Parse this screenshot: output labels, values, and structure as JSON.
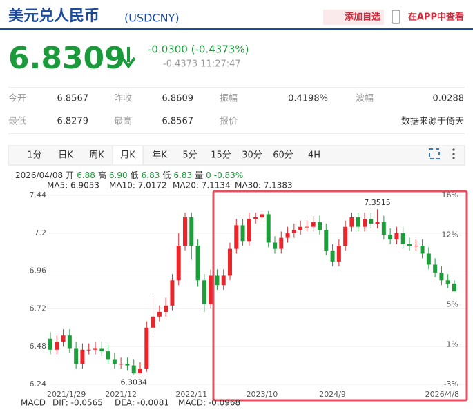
{
  "header": {
    "title": "美元兑人民币",
    "code": "(USDCNY)",
    "add_button": "添加自选",
    "app_button": "在APP中查看"
  },
  "quote": {
    "price": "6.8309",
    "change": "-0.0300 (-0.4373%)",
    "detail": "-0.4373 11:27:47"
  },
  "stats": [
    [
      {
        "label": "今开",
        "value": "6.8567"
      },
      {
        "label": "昨收",
        "value": "6.8609"
      },
      {
        "label": "振幅",
        "value": "0.4198%"
      },
      {
        "label": "波幅",
        "value": "0.0288"
      }
    ],
    [
      {
        "label": "最低",
        "value": "6.8279"
      },
      {
        "label": "最高",
        "value": "6.8567"
      },
      {
        "label": "报价",
        "value": "数据来源于倚天"
      }
    ]
  ],
  "tabs": [
    "1分",
    "日K",
    "周K",
    "月K",
    "年K",
    "5分",
    "15分",
    "30分",
    "60分",
    "4H"
  ],
  "active_tab": 3,
  "info": {
    "date": "2026/04/08",
    "items": [
      {
        "label": "开",
        "value": "6.88"
      },
      {
        "label": "高",
        "value": "6.90"
      },
      {
        "label": "低",
        "value": "6.83"
      },
      {
        "label": "低",
        "value": "6.83"
      },
      {
        "label": "量",
        "value": "0"
      }
    ],
    "change": "-0.83%"
  },
  "ma_legend": [
    {
      "text": "MA5: 6.9053",
      "color": "#f08cb0"
    },
    {
      "text": "MA10: 7.0172",
      "color": "#27b3d6"
    },
    {
      "text": "MA20: 7.1134",
      "color": "#e83a6a"
    },
    {
      "text": "MA30: 7.1383",
      "color": "#9ab52a"
    }
  ],
  "macd": [
    {
      "text": "MACD",
      "color": "#666666"
    },
    {
      "text": "DIF: -0.0565",
      "color": "#3d7fd6"
    },
    {
      "text": "DEA: -0.0081",
      "color": "#e070b0"
    },
    {
      "text": "MACD: -0.0968",
      "color": "#e03a3a"
    }
  ],
  "chart_data": {
    "type": "candlestick",
    "categories": [
      "2021/1/29",
      null,
      null,
      null,
      null,
      null,
      null,
      null,
      null,
      null,
      null,
      "2021/12",
      null,
      null,
      null,
      null,
      null,
      null,
      null,
      null,
      null,
      null,
      "2022/11",
      null,
      null,
      null,
      null,
      null,
      null,
      null,
      null,
      null,
      null,
      "2023/10",
      null,
      null,
      null,
      null,
      null,
      null,
      null,
      null,
      null,
      null,
      "2024/9",
      null,
      null,
      null,
      null,
      null,
      null,
      null,
      null,
      null,
      null,
      null,
      null,
      null,
      null,
      null,
      null,
      null,
      null,
      "2026/4/8"
    ],
    "open": [
      6.53,
      6.46,
      6.51,
      6.55,
      6.47,
      6.37,
      6.46,
      6.46,
      6.47,
      6.45,
      6.4,
      6.37,
      6.37,
      6.36,
      6.31,
      6.34,
      6.6,
      6.67,
      6.7,
      6.74,
      6.9,
      7.12,
      7.3,
      7.12,
      6.9,
      6.75,
      6.93,
      6.87,
      6.93,
      7.1,
      7.25,
      7.15,
      7.29,
      7.3,
      7.32,
      7.14,
      7.1,
      7.17,
      7.2,
      7.22,
      7.24,
      7.24,
      7.27,
      7.22,
      7.09,
      7.02,
      7.12,
      7.24,
      7.3,
      7.24,
      7.29,
      7.26,
      7.27,
      7.19,
      7.16,
      7.2,
      7.13,
      7.12,
      7.12,
      7.07,
      7.0,
      6.95,
      6.9,
      6.88
    ],
    "high": [
      6.57,
      6.55,
      6.59,
      6.59,
      6.51,
      6.5,
      6.5,
      6.51,
      6.51,
      6.49,
      6.44,
      6.41,
      6.41,
      6.4,
      6.38,
      6.64,
      6.8,
      6.74,
      6.79,
      6.94,
      7.2,
      7.33,
      7.33,
      7.16,
      6.94,
      6.97,
      6.97,
      6.97,
      7.14,
      7.29,
      7.29,
      7.33,
      7.33,
      7.34,
      7.34,
      7.18,
      7.21,
      7.24,
      7.26,
      7.28,
      7.28,
      7.31,
      7.31,
      7.26,
      7.13,
      7.16,
      7.28,
      7.33,
      7.33,
      7.33,
      7.33,
      7.3515,
      7.31,
      7.23,
      7.24,
      7.24,
      7.17,
      7.16,
      7.16,
      7.11,
      7.04,
      6.99,
      6.94,
      6.9
    ],
    "low": [
      6.43,
      6.43,
      6.48,
      6.44,
      6.34,
      6.34,
      6.43,
      6.43,
      6.42,
      6.37,
      6.34,
      6.34,
      6.33,
      6.3034,
      6.31,
      6.32,
      6.57,
      6.64,
      6.67,
      6.71,
      6.87,
      7.09,
      7.03,
      6.86,
      6.7,
      6.72,
      6.84,
      6.84,
      6.9,
      7.07,
      7.12,
      7.12,
      7.26,
      7.27,
      7.11,
      7.07,
      7.07,
      7.14,
      7.17,
      7.19,
      7.21,
      7.21,
      7.19,
      7.06,
      6.99,
      6.99,
      7.09,
      7.21,
      7.21,
      7.21,
      7.23,
      7.23,
      7.16,
      7.13,
      7.13,
      7.1,
      7.09,
      7.09,
      7.04,
      6.97,
      6.92,
      6.87,
      6.85,
      6.83
    ],
    "close": [
      6.46,
      6.51,
      6.55,
      6.47,
      6.37,
      6.46,
      6.46,
      6.47,
      6.45,
      6.4,
      6.37,
      6.37,
      6.36,
      6.31,
      6.34,
      6.6,
      6.67,
      6.7,
      6.74,
      6.9,
      7.12,
      7.3,
      7.12,
      6.9,
      6.75,
      6.93,
      6.87,
      6.93,
      7.1,
      7.25,
      7.15,
      7.29,
      7.3,
      7.32,
      7.14,
      7.1,
      7.17,
      7.2,
      7.22,
      7.24,
      7.24,
      7.27,
      7.22,
      7.09,
      7.02,
      7.12,
      7.24,
      7.3,
      7.24,
      7.29,
      7.26,
      7.27,
      7.19,
      7.16,
      7.2,
      7.13,
      7.12,
      7.12,
      7.07,
      7.0,
      6.95,
      6.9,
      6.88,
      6.83
    ],
    "up_color": "#e8262b",
    "down_color": "#1e9e3a",
    "ylim": [
      6.24,
      7.44
    ],
    "yticks": [
      7.44,
      7.2,
      6.96,
      6.72,
      6.48,
      6.24
    ],
    "y2lim": [
      -3,
      16
    ],
    "y2ticks": [
      {
        "value": 16,
        "label": "16%"
      },
      {
        "value": 12,
        "label": "12%"
      },
      {
        "value": 5,
        "label": "5%"
      },
      {
        "value": 1,
        "label": "1%"
      },
      {
        "value": -3,
        "label": "-3%"
      }
    ],
    "grid": true
  }
}
